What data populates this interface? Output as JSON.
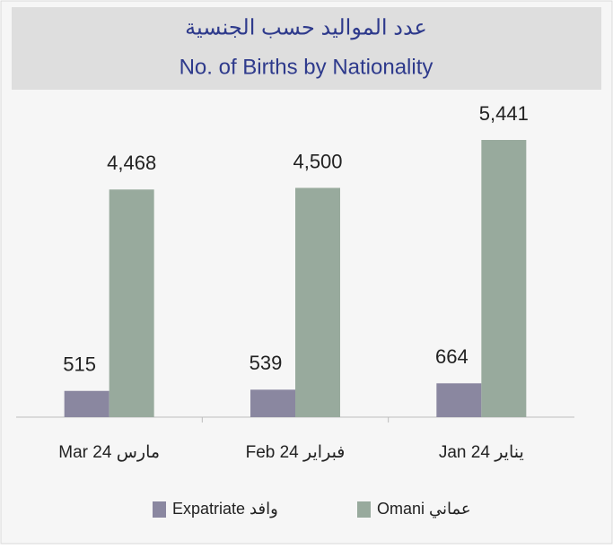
{
  "chart_data": {
    "type": "bar",
    "title": "عدد المواليد حسب الجنسية",
    "subtitle": "No. of Births by Nationality",
    "categories": [
      "Mar 24 مارس",
      "Feb 24 فبراير",
      "Jan 24 يناير"
    ],
    "series": [
      {
        "name": "Expatriate وافد",
        "color": "#8a87a0",
        "values": [
          515,
          539,
          664
        ],
        "value_labels": [
          "515",
          "539",
          "664"
        ]
      },
      {
        "name": "Omani عماني",
        "color": "#98aa9d",
        "values": [
          4468,
          4500,
          5441
        ],
        "value_labels": [
          "4,468",
          "4,500",
          "5,441"
        ]
      }
    ]
  }
}
